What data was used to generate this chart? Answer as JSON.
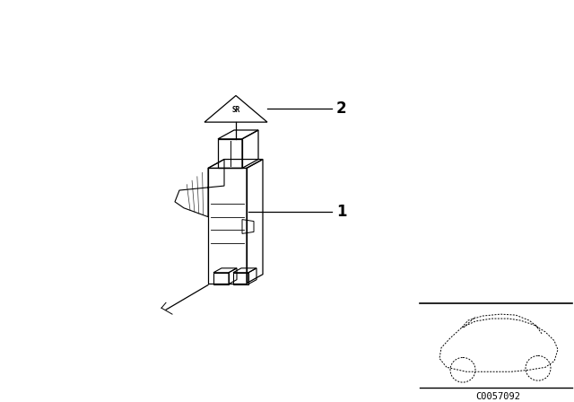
{
  "bg_color": "#ffffff",
  "line_color": "#000000",
  "label1": "1",
  "label2": "2",
  "diagram_code": "C0057092",
  "fig_width": 6.4,
  "fig_height": 4.48,
  "dpi": 100
}
